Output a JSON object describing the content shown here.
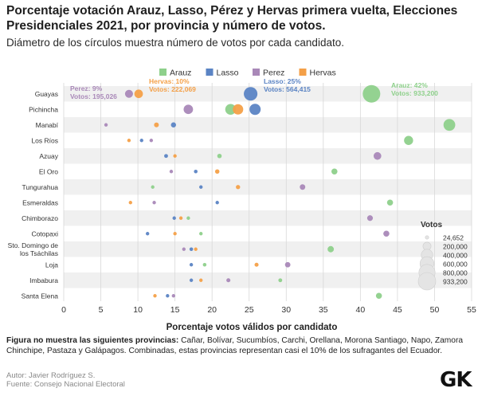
{
  "header": {
    "title": "Porcentaje votación Arauz, Lasso, Pérez y Hervas primera vuelta, Elecciones Presidenciales 2021, por provincia y número de votos.",
    "subtitle": "Diámetro de los círculos muestra número de votos por cada candidato."
  },
  "chart_data": {
    "type": "scatter",
    "xlabel": "Porcentaje votos válidos por candidato",
    "ylabel": "",
    "xlim": [
      0,
      55
    ],
    "xticks": [
      0,
      5,
      10,
      15,
      20,
      25,
      30,
      35,
      40,
      45,
      50,
      55
    ],
    "grid": true,
    "legend_position": "top",
    "categories": [
      "Guayas",
      "Pichincha",
      "Manabí",
      "Los Ríos",
      "Azuay",
      "El Oro",
      "Tungurahua",
      "Esmeraldas",
      "Chimborazo",
      "Cotopaxi",
      "Sto. Domingo de los Tsáchilas",
      "Loja",
      "Imbabura",
      "Santa Elena"
    ],
    "series": [
      {
        "name": "Arauz",
        "color": "#8ed08b",
        "x": [
          41.5,
          22.5,
          52.0,
          46.5,
          21.0,
          36.5,
          12.0,
          44.0,
          16.8,
          18.5,
          36.0,
          19.0,
          29.2,
          42.5
        ],
        "votes": [
          933200,
          350000,
          420000,
          250000,
          60000,
          110000,
          25000,
          110000,
          28000,
          30000,
          120000,
          40000,
          45000,
          110000
        ]
      },
      {
        "name": "Lasso",
        "color": "#5b84c4",
        "x": [
          25.2,
          25.8,
          14.8,
          10.5,
          13.8,
          17.8,
          18.5,
          20.7,
          14.9,
          11.3,
          17.2,
          17.2,
          17.2,
          14.0
        ],
        "votes": [
          564415,
          380000,
          80000,
          35000,
          45000,
          40000,
          35000,
          30000,
          27000,
          15000,
          40000,
          36000,
          36000,
          30000
        ]
      },
      {
        "name": "Perez",
        "color": "#a988b8",
        "x": [
          8.8,
          16.8,
          5.7,
          11.8,
          42.3,
          14.5,
          32.2,
          12.2,
          41.3,
          43.5,
          16.2,
          30.2,
          22.2,
          14.8
        ],
        "votes": [
          195026,
          270000,
          28000,
          25000,
          180000,
          36000,
          92000,
          20000,
          100000,
          110000,
          28000,
          90000,
          50000,
          26000
        ],
        "note": ""
      },
      {
        "name": "Hervas",
        "color": "#f4a048",
        "x": [
          10.1,
          23.5,
          12.5,
          8.8,
          15.0,
          20.7,
          23.5,
          9.0,
          15.8,
          15.0,
          17.8,
          26.0,
          18.5,
          12.3
        ],
        "votes": [
          222069,
          330000,
          70000,
          18000,
          35000,
          58000,
          55000,
          14000,
          30000,
          20000,
          32000,
          50000,
          33000,
          22000
        ]
      }
    ],
    "annotations": [
      {
        "series": "Perez",
        "row": "Guayas",
        "lines": [
          "Perez: 9%",
          "Votos: 195,026"
        ]
      },
      {
        "series": "Hervas",
        "row": "Guayas",
        "lines": [
          "Hervas: 10%",
          "Votos: 222,069"
        ]
      },
      {
        "series": "Lasso",
        "row": "Guayas",
        "lines": [
          "Lasso: 25%",
          "Votos: 564,415"
        ]
      },
      {
        "series": "Arauz",
        "row": "Guayas",
        "lines": [
          "Arauz: 42%",
          "Votos: 933,200"
        ]
      }
    ],
    "size_legend": {
      "title": "Votos",
      "entries": [
        {
          "value": 24652,
          "label": "24,652"
        },
        {
          "value": 200000,
          "label": "200,000"
        },
        {
          "value": 400000,
          "label": "400,000"
        },
        {
          "value": 600000,
          "label": "600,000"
        },
        {
          "value": 800000,
          "label": "800,000"
        },
        {
          "value": 933200,
          "label": "933,200"
        }
      ]
    }
  },
  "footer": {
    "note_bold": "Figura no muestra las siguientes provincias:",
    "note_text": " Cañar, Bolívar, Sucumbíos, Carchi, Orellana, Morona Santiago, Napo, Zamora Chinchipe, Pastaza y Galápagos. Combinadas, estas provincias representan casi el 10% de los sufragantes del Ecuador.",
    "author": "Autor: Javier Rodríguez S.",
    "source": "Fuente: Consejo Nacional Electoral",
    "logo": "GK"
  }
}
